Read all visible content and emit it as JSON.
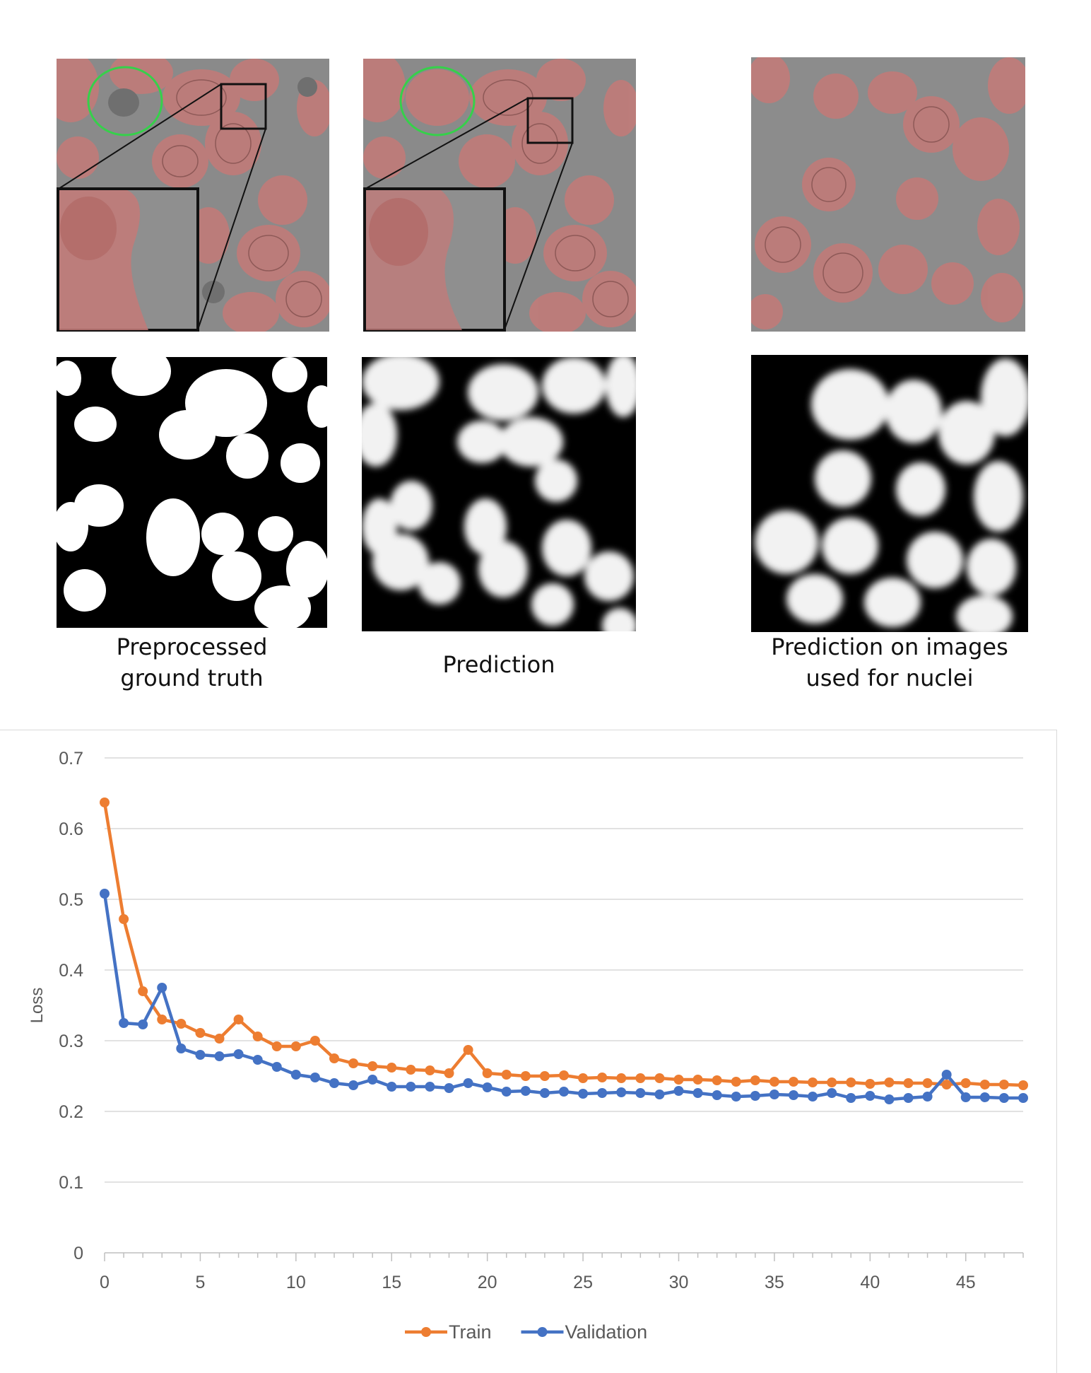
{
  "figure": {
    "captions": {
      "ground_truth": [
        "Preprocessed",
        "ground truth"
      ],
      "prediction": "Prediction",
      "nuclei": [
        "Prediction on images",
        "used for nuclei"
      ]
    },
    "colors": {
      "background_gray": "#8a8a8a",
      "cell_tint": "#c47a78",
      "ring": "#35d14a",
      "mask_white": "#ffffff",
      "mask_black": "#000000"
    }
  },
  "chart_data": {
    "type": "line",
    "title": "",
    "xlabel": "",
    "ylabel": "Loss",
    "xlim": [
      0,
      48
    ],
    "ylim": [
      0,
      0.7
    ],
    "xticks": [
      0,
      5,
      10,
      15,
      20,
      25,
      30,
      35,
      40,
      45
    ],
    "yticks": [
      0,
      0.1,
      0.2,
      0.3,
      0.4,
      0.5,
      0.6,
      0.7
    ],
    "ytick_labels": [
      "0",
      "0.1",
      "0.2",
      "0.3",
      "0.4",
      "0.5",
      "0.6",
      "0.7"
    ],
    "grid": true,
    "legend": "bottom-center",
    "x": [
      0,
      1,
      2,
      3,
      4,
      5,
      6,
      7,
      8,
      9,
      10,
      11,
      12,
      13,
      14,
      15,
      16,
      17,
      18,
      19,
      20,
      21,
      22,
      23,
      24,
      25,
      26,
      27,
      28,
      29,
      30,
      31,
      32,
      33,
      34,
      35,
      36,
      37,
      38,
      39,
      40,
      41,
      42,
      43,
      44,
      45,
      46,
      47,
      48
    ],
    "series": [
      {
        "name": "Train",
        "color": "#ed7d31",
        "values": [
          0.637,
          0.472,
          0.37,
          0.33,
          0.324,
          0.311,
          0.303,
          0.33,
          0.306,
          0.292,
          0.292,
          0.3,
          0.275,
          0.268,
          0.264,
          0.262,
          0.259,
          0.258,
          0.254,
          0.287,
          0.254,
          0.252,
          0.25,
          0.25,
          0.251,
          0.247,
          0.248,
          0.247,
          0.247,
          0.247,
          0.245,
          0.245,
          0.244,
          0.242,
          0.244,
          0.242,
          0.242,
          0.241,
          0.241,
          0.241,
          0.239,
          0.241,
          0.24,
          0.24,
          0.238,
          0.24,
          0.238,
          0.238,
          0.237
        ]
      },
      {
        "name": "Validation",
        "color": "#4472c4",
        "values": [
          0.508,
          0.325,
          0.323,
          0.375,
          0.289,
          0.28,
          0.278,
          0.281,
          0.273,
          0.263,
          0.252,
          0.248,
          0.24,
          0.237,
          0.245,
          0.235,
          0.235,
          0.235,
          0.233,
          0.24,
          0.234,
          0.228,
          0.229,
          0.226,
          0.228,
          0.225,
          0.226,
          0.227,
          0.226,
          0.224,
          0.229,
          0.226,
          0.223,
          0.221,
          0.222,
          0.224,
          0.223,
          0.221,
          0.226,
          0.219,
          0.222,
          0.217,
          0.219,
          0.221,
          0.252,
          0.22,
          0.22,
          0.219,
          0.219
        ]
      }
    ]
  }
}
